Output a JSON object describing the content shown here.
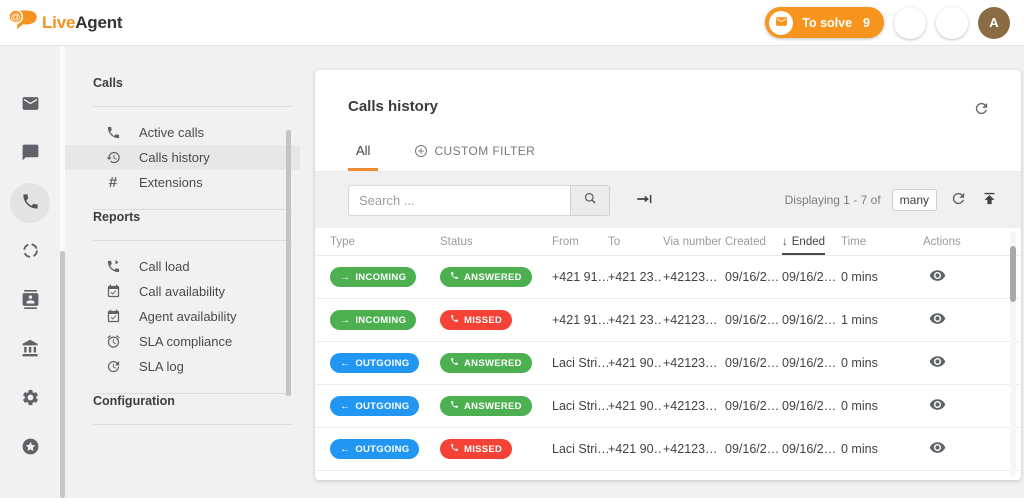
{
  "colors": {
    "brand_orange": "#F6921E",
    "tab_accent_orange": "#EE8A31",
    "incoming_answered_green": "#4CAF50",
    "outgoing_blue": "#2196F3",
    "missed_red": "#F44336",
    "avatar_brown": "#8A6C44"
  },
  "header": {
    "logo_live": "Live",
    "logo_agent": "Agent",
    "to_solve_label": "To solve",
    "to_solve_count": "9",
    "avatar_initial": "A"
  },
  "sidebar": {
    "items": [
      {
        "icon": "mail-icon"
      },
      {
        "icon": "chat-icon"
      },
      {
        "icon": "phone-icon",
        "active": true
      },
      {
        "icon": "loader-icon"
      },
      {
        "icon": "contacts-icon"
      },
      {
        "icon": "bank-icon"
      },
      {
        "icon": "gear-icon"
      },
      {
        "icon": "star-icon"
      }
    ]
  },
  "menu": {
    "sections": [
      {
        "title": "Calls",
        "items": [
          {
            "label": "Active calls",
            "icon": "phone-icon"
          },
          {
            "label": "Calls history",
            "icon": "history-icon",
            "active": true
          },
          {
            "label": "Extensions",
            "icon": "hash-icon"
          }
        ]
      },
      {
        "title": "Reports",
        "items": [
          {
            "label": "Call load",
            "icon": "call-load-icon"
          },
          {
            "label": "Call availability",
            "icon": "calendar-check-icon"
          },
          {
            "label": "Agent availability",
            "icon": "calendar-check-icon"
          },
          {
            "label": "SLA compliance",
            "icon": "alarm-icon"
          },
          {
            "label": "SLA log",
            "icon": "sla-log-icon"
          }
        ]
      },
      {
        "title": "Configuration",
        "items": []
      }
    ]
  },
  "main": {
    "title": "Calls history",
    "tabs": [
      {
        "label": "All",
        "active": true
      },
      {
        "label": "CUSTOM FILTER",
        "icon": "plus-circle-icon"
      }
    ],
    "filter_bar": {
      "search_placeholder": "Search ...",
      "displaying_text": "Displaying 1 - 7 of",
      "count_chip": "many"
    },
    "table": {
      "columns": [
        {
          "label": "Type"
        },
        {
          "label": "Status"
        },
        {
          "label": "From"
        },
        {
          "label": "To"
        },
        {
          "label": "Via number"
        },
        {
          "label": "Created"
        },
        {
          "label": "Ended",
          "sorted": true,
          "sort_arrow": "↓"
        },
        {
          "label": "Time"
        },
        {
          "label": "Actions"
        }
      ],
      "rows": [
        {
          "type": "INCOMING",
          "type_arrow": "→",
          "status": "ANSWERED",
          "from": "+421 91…",
          "to": "+421 23…",
          "via": "+42123…",
          "created": "09/16/2…",
          "ended": "09/16/2…",
          "time": "0 mins"
        },
        {
          "type": "INCOMING",
          "type_arrow": "→",
          "status": "MISSED",
          "from": "+421 91…",
          "to": "+421 23…",
          "via": "+42123…",
          "created": "09/16/2…",
          "ended": "09/16/2…",
          "time": "1 mins"
        },
        {
          "type": "OUTGOING",
          "type_arrow": "←",
          "status": "ANSWERED",
          "from": "Laci Stri…",
          "to": "+421 90…",
          "via": "+42123…",
          "created": "09/16/2…",
          "ended": "09/16/2…",
          "time": "0 mins"
        },
        {
          "type": "OUTGOING",
          "type_arrow": "←",
          "status": "ANSWERED",
          "from": "Laci Stri…",
          "to": "+421 90…",
          "via": "+42123…",
          "created": "09/16/2…",
          "ended": "09/16/2…",
          "time": "0 mins"
        },
        {
          "type": "OUTGOING",
          "type_arrow": "←",
          "status": "MISSED",
          "from": "Laci Stri…",
          "to": "+421 90…",
          "via": "+42123…",
          "created": "09/16/2…",
          "ended": "09/16/2…",
          "time": "0 mins"
        }
      ]
    }
  }
}
